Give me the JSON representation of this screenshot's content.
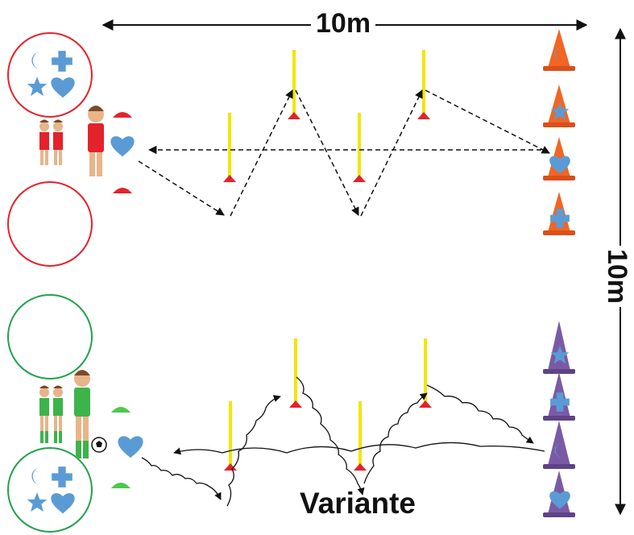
{
  "diagram": {
    "width_label": "10m",
    "height_label": "10m",
    "variant_label": "Variante",
    "colors": {
      "red_team": "#e4222b",
      "green_team": "#3cb44a",
      "shape_blue": "#5b9bd5",
      "pole_yellow": "#f2e600",
      "cone_orange": "#f26522",
      "cone_purple": "#7a5aa6",
      "circle_red": "#e4222b",
      "circle_green": "#22a24a"
    },
    "top_drill": {
      "team": "red",
      "circle_symbols": [
        "moon",
        "cross",
        "star",
        "heart"
      ],
      "signal_symbol": "heart",
      "cone_symbols": [
        "moon",
        "star",
        "heart",
        "cross"
      ],
      "path_style": "dashed"
    },
    "bottom_drill": {
      "team": "green",
      "circle_symbols": [
        "moon",
        "cross",
        "star",
        "heart"
      ],
      "signal_symbol": "heart",
      "cone_symbols": [
        "star",
        "cross",
        "moon",
        "heart"
      ],
      "path_style": "wavy-with-ball"
    }
  }
}
